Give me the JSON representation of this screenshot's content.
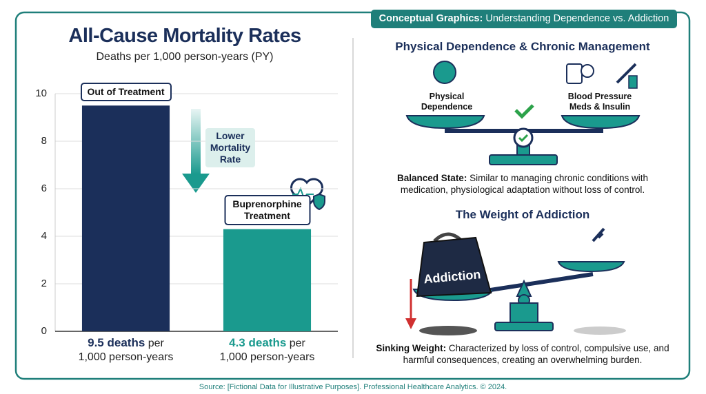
{
  "chart_data": {
    "type": "bar",
    "title": "All-Cause Mortality Rates",
    "subtitle": "Deaths per 1,000 person-years (PY)",
    "categories": [
      "Out of Treatment",
      "Buprenorphine Treatment"
    ],
    "values": [
      9.5,
      4.3
    ],
    "value_labels": [
      "9.5 deaths",
      "4.3 deaths"
    ],
    "value_label_unit": [
      "per",
      "1,000 person-years"
    ],
    "colors": [
      "#1b2f5a",
      "#1a9a8e"
    ],
    "ylim": [
      0,
      10
    ],
    "yticks": [
      0,
      2,
      4,
      6,
      8,
      10
    ],
    "grid": true,
    "annotation": "Lower Mortality Rate"
  },
  "panel": {
    "header": {
      "bold": "Conceptual Graphics:",
      "text": "Understanding Dependence vs. Addiction"
    },
    "dependence": {
      "title": "Physical Dependence & Chronic Management",
      "left_label": "Physical Dependence",
      "right_label": "Blood Pressure Meds & Insulin",
      "caption_bold": "Balanced State:",
      "caption": "Similar to managing chronic conditions with medication, physiological adaptation without loss of control."
    },
    "addiction": {
      "title": "The Weight of Addiction",
      "weight_label": "Addiction",
      "caption_bold": "Sinking Weight:",
      "caption": "Characterized by loss of control, compulsive use, and harmful consequences, creating an overwhelming burden."
    }
  },
  "footer": "Source: [Fictional Data for Illustrative Purposes]. Professional Healthcare Analytics. © 2024."
}
